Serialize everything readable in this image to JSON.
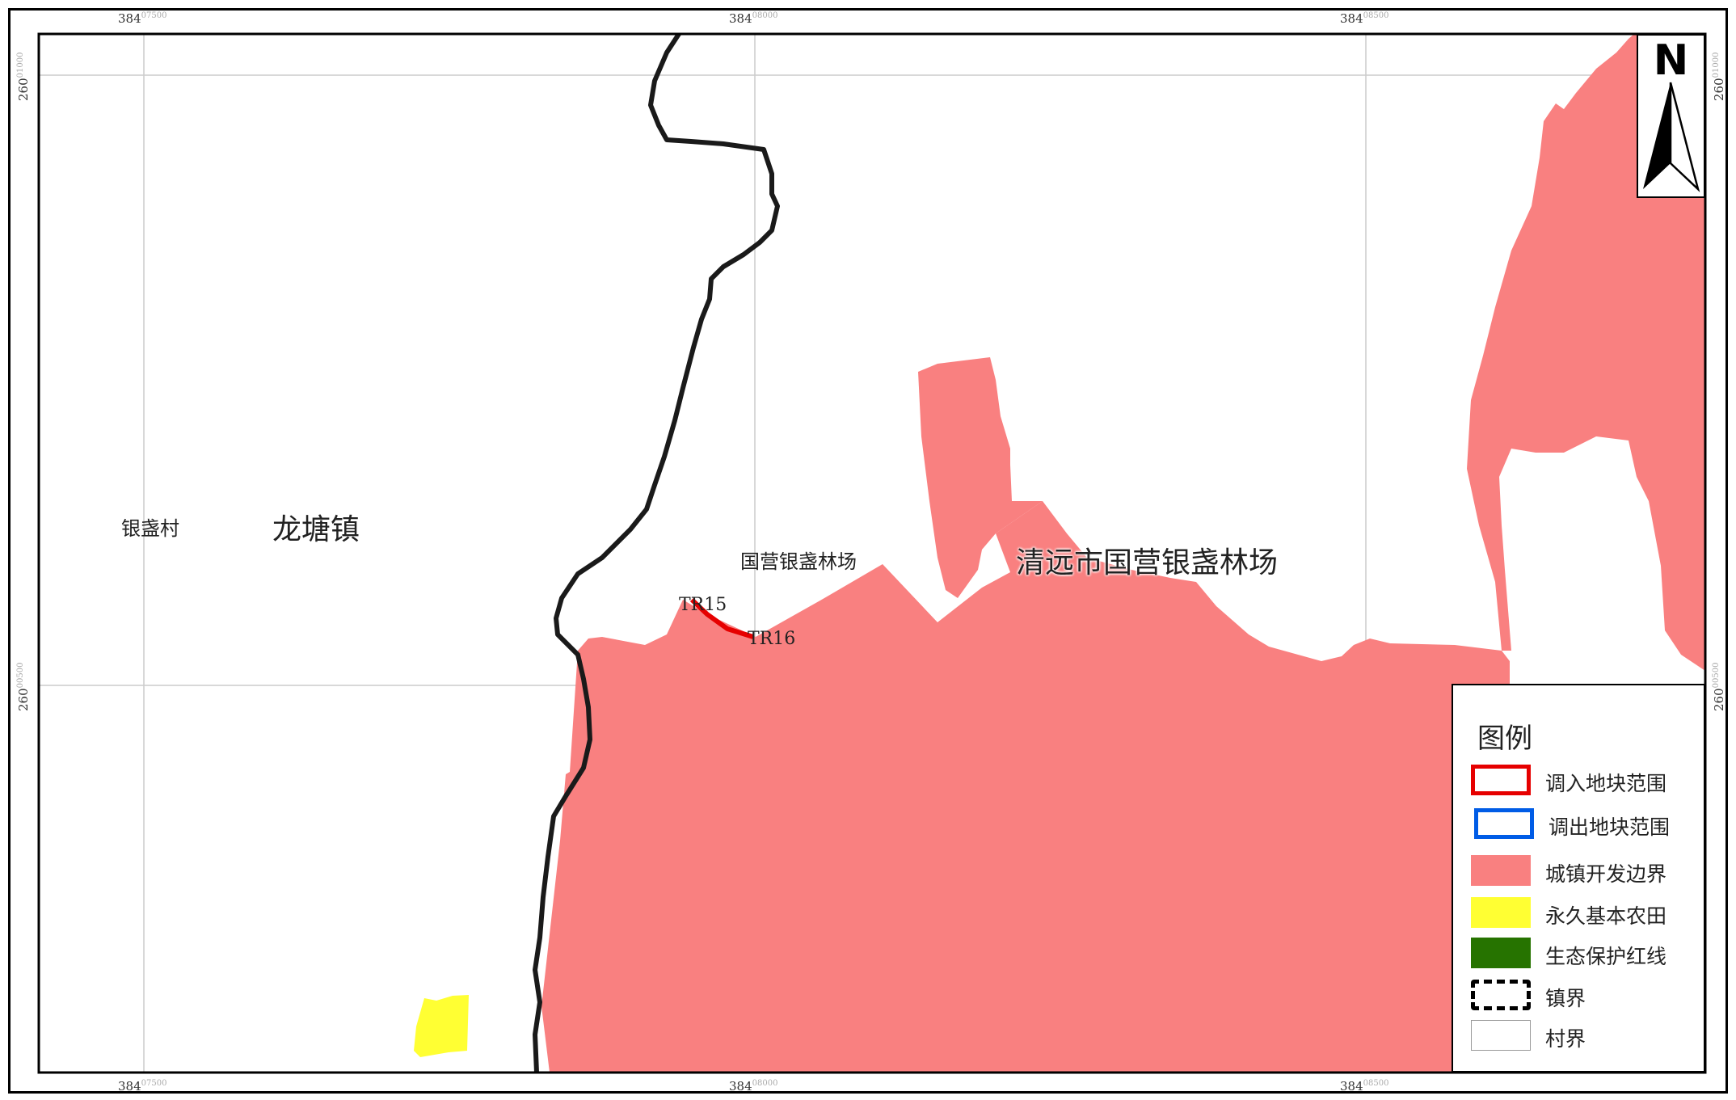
{
  "map": {
    "labels": {
      "village": "银盏村",
      "town": "龙塘镇",
      "forest_small": "国营银盏林场",
      "forest_big": "清远市国营银盏林场",
      "code_tr15": "TR15",
      "code_tr16": "TR16"
    },
    "colors": {
      "urban_boundary": "#f98080",
      "farmland": "#ffff33",
      "eco_red_line": "#267300",
      "in_plot": "#e60000",
      "out_plot": "#005ce6",
      "town_boundary": "#1a1a1a",
      "grid": "#cccccc"
    }
  },
  "ticks": {
    "top": [
      {
        "main": "384",
        "sup": "07500"
      },
      {
        "main": "384",
        "sup": "08000"
      },
      {
        "main": "384",
        "sup": "08500"
      }
    ],
    "bottom": [
      {
        "main": "384",
        "sup": "07500"
      },
      {
        "main": "384",
        "sup": "08000"
      },
      {
        "main": "384",
        "sup": "08500"
      }
    ],
    "left": [
      {
        "main": "260",
        "sup": "01000"
      },
      {
        "main": "260",
        "sup": "00500"
      }
    ],
    "right": [
      {
        "main": "260",
        "sup": "01000"
      },
      {
        "main": "260",
        "sup": "00500"
      }
    ]
  },
  "north_arrow": {
    "letter": "N",
    "icon": "north-arrow-icon"
  },
  "legend": {
    "title": "图例",
    "items": [
      {
        "label": "调入地块范围",
        "kind": "in-plot"
      },
      {
        "label": "调出地块范围",
        "kind": "out-plot"
      },
      {
        "label": "城镇开发边界",
        "kind": "urban"
      },
      {
        "label": "永久基本农田",
        "kind": "farmland"
      },
      {
        "label": "生态保护红线",
        "kind": "eco"
      },
      {
        "label": "镇界",
        "kind": "town-boundary"
      },
      {
        "label": "村界",
        "kind": "village-boundary"
      }
    ]
  }
}
